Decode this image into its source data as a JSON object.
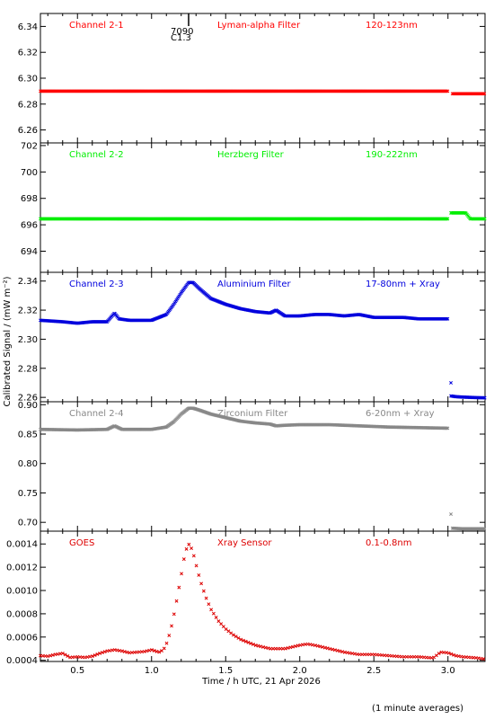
{
  "chart_data": {
    "type": "scatter",
    "shared_x": {
      "label": "Time / h UTC, 21 Apr 2026",
      "range": [
        0.25,
        3.25
      ],
      "ticks": [
        "0.5",
        "1.0",
        "1.5",
        "2.0",
        "2.5",
        "3.0"
      ],
      "tick_values": [
        0.5,
        1.0,
        1.5,
        2.0,
        2.5,
        3.0
      ]
    },
    "ylabel": "Calibrated Signal / (mW m⁻²)",
    "event_marker": {
      "x": 1.25,
      "label_top": "7090",
      "label_bottom": "C1.3"
    },
    "footnote": "(1 minute averages)",
    "panels": [
      {
        "id": "ch21",
        "labels": [
          "Channel 2-1",
          "Lyman-alpha Filter",
          "120-123nm"
        ],
        "color": "#ff0000",
        "ylim": [
          6.25,
          6.35
        ],
        "yticks": [
          "6.26",
          "6.28",
          "6.30",
          "6.32",
          "6.34"
        ],
        "ytick_values": [
          6.26,
          6.28,
          6.3,
          6.32,
          6.34
        ],
        "series": [
          {
            "x": [
              0.25,
              1.0,
              2.0,
              3.0
            ],
            "y": [
              6.29,
              6.29,
              6.29,
              6.29
            ]
          },
          {
            "x": [
              3.03,
              3.25
            ],
            "y": [
              6.288,
              6.288
            ]
          }
        ]
      },
      {
        "id": "ch22",
        "labels": [
          "Channel 2-2",
          "Herzberg Filter",
          "190-222nm"
        ],
        "color": "#00ee00",
        "ylim": [
          692.4,
          702.2
        ],
        "yticks": [
          "694",
          "696",
          "698",
          "700",
          "702"
        ],
        "ytick_values": [
          694,
          696,
          698,
          700,
          702
        ],
        "series": [
          {
            "x": [
              0.25,
              1.0,
              2.0,
              3.0
            ],
            "y": [
              696.45,
              696.45,
              696.45,
              696.45
            ]
          },
          {
            "x": [
              3.02,
              3.08,
              3.12,
              3.15,
              3.25
            ],
            "y": [
              696.9,
              696.9,
              696.9,
              696.45,
              696.45
            ]
          }
        ]
      },
      {
        "id": "ch23",
        "labels": [
          "Channel 2-3",
          "Aluminium Filter",
          "17-80nm + Xray"
        ],
        "color": "#0000dd",
        "ylim": [
          2.257,
          2.346
        ],
        "yticks": [
          "2.26",
          "2.28",
          "2.30",
          "2.32",
          "2.34"
        ],
        "ytick_values": [
          2.26,
          2.28,
          2.3,
          2.32,
          2.34
        ],
        "series": [
          {
            "x": [
              0.25,
              0.4,
              0.5,
              0.6,
              0.7,
              0.75,
              0.78,
              0.85,
              1.0,
              1.1,
              1.15,
              1.2,
              1.25,
              1.28,
              1.32,
              1.4,
              1.5,
              1.6,
              1.7,
              1.8,
              1.84,
              1.9,
              2.0,
              2.1,
              2.2,
              2.3,
              2.4,
              2.5,
              2.6,
              2.7,
              2.8,
              2.9,
              3.0
            ],
            "y": [
              2.313,
              2.312,
              2.311,
              2.312,
              2.312,
              2.318,
              2.314,
              2.313,
              2.313,
              2.317,
              2.324,
              2.332,
              2.339,
              2.339,
              2.335,
              2.328,
              2.324,
              2.321,
              2.319,
              2.318,
              2.32,
              2.316,
              2.316,
              2.317,
              2.317,
              2.316,
              2.317,
              2.315,
              2.315,
              2.315,
              2.314,
              2.314,
              2.314
            ]
          },
          {
            "x": [
              3.02,
              3.05,
              3.1,
              3.15,
              3.2,
              3.25
            ],
            "y": [
              2.261,
              2.2605,
              2.2602,
              2.26,
              2.2598,
              2.2597
            ]
          }
        ],
        "outliers": {
          "x": [
            3.02
          ],
          "y": [
            2.27
          ]
        }
      },
      {
        "id": "ch24",
        "labels": [
          "Channel 2-4",
          "Zirconium Filter",
          "6-20nm + Xray"
        ],
        "color": "#888888",
        "ylim": [
          0.685,
          0.905
        ],
        "yticks": [
          "0.70",
          "0.75",
          "0.80",
          "0.85",
          "0.90"
        ],
        "ytick_values": [
          0.7,
          0.75,
          0.8,
          0.85,
          0.9
        ],
        "series": [
          {
            "x": [
              0.25,
              0.5,
              0.7,
              0.75,
              0.8,
              1.0,
              1.1,
              1.15,
              1.2,
              1.25,
              1.28,
              1.32,
              1.4,
              1.5,
              1.6,
              1.7,
              1.8,
              1.84,
              1.9,
              2.0,
              2.2,
              2.4,
              2.6,
              2.8,
              3.0
            ],
            "y": [
              0.858,
              0.857,
              0.858,
              0.864,
              0.858,
              0.858,
              0.862,
              0.871,
              0.884,
              0.894,
              0.894,
              0.891,
              0.884,
              0.878,
              0.872,
              0.869,
              0.867,
              0.864,
              0.865,
              0.866,
              0.866,
              0.864,
              0.862,
              0.861,
              0.86
            ]
          },
          {
            "x": [
              3.03,
              3.1,
              3.15,
              3.2,
              3.25
            ],
            "y": [
              0.69,
              0.689,
              0.689,
              0.689,
              0.689
            ]
          }
        ],
        "outliers": {
          "x": [
            3.02
          ],
          "y": [
            0.714
          ]
        }
      },
      {
        "id": "goes",
        "labels": [
          "GOES",
          "Xray Sensor",
          "0.1-0.8nm"
        ],
        "color": "#dd0000",
        "ylim": [
          0.00039,
          0.00151
        ],
        "yticks": [
          "0.0004",
          "0.0006",
          "0.0008",
          "0.0010",
          "0.0012",
          "0.0014"
        ],
        "ytick_values": [
          0.0004,
          0.0006,
          0.0008,
          0.001,
          0.0012,
          0.0014
        ],
        "series": [
          {
            "x": [
              0.25,
              0.3,
              0.35,
              0.4,
              0.45,
              0.5,
              0.55,
              0.6,
              0.65,
              0.7,
              0.75,
              0.8,
              0.85,
              0.9,
              0.95,
              1.0,
              1.05,
              1.08,
              1.1,
              1.12,
              1.14,
              1.16,
              1.18,
              1.2,
              1.22,
              1.24,
              1.25,
              1.27,
              1.29,
              1.31,
              1.34,
              1.37,
              1.4,
              1.45,
              1.5,
              1.55,
              1.6,
              1.7,
              1.8,
              1.9,
              2.0,
              2.05,
              2.1,
              2.2,
              2.3,
              2.4,
              2.5,
              2.6,
              2.7,
              2.8,
              2.9,
              2.95,
              3.0,
              3.05,
              3.1,
              3.2,
              3.25
            ],
            "y": [
              0.00044,
              0.000435,
              0.00045,
              0.00046,
              0.000425,
              0.00043,
              0.000425,
              0.000435,
              0.00046,
              0.00048,
              0.00049,
              0.00048,
              0.000465,
              0.00047,
              0.000475,
              0.00049,
              0.00047,
              0.00049,
              0.00054,
              0.00062,
              0.00072,
              0.00085,
              0.00099,
              0.00113,
              0.00128,
              0.00138,
              0.0014,
              0.00136,
              0.00128,
              0.00117,
              0.00104,
              0.00093,
              0.00084,
              0.00074,
              0.00067,
              0.00062,
              0.00058,
              0.00053,
              0.0005,
              0.0005,
              0.00053,
              0.00054,
              0.00053,
              0.0005,
              0.00047,
              0.00045,
              0.00045,
              0.00044,
              0.00043,
              0.00043,
              0.00042,
              0.00047,
              0.000465,
              0.00044,
              0.00043,
              0.00042,
              0.00041
            ]
          }
        ]
      }
    ]
  }
}
